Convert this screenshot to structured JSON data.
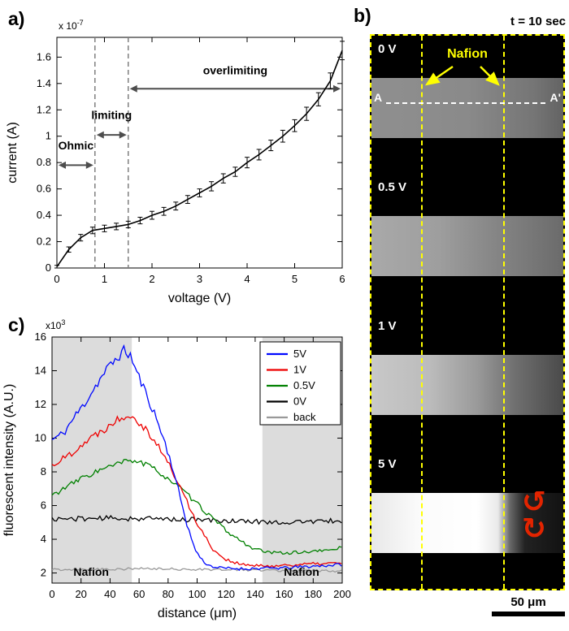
{
  "figure": {
    "panel_a_label": "a)",
    "panel_b_label": "b)",
    "panel_c_label": "c)"
  },
  "panel_b": {
    "time_label": "t = 10 sec",
    "nafion_label": "Nafion",
    "marker_left": "A",
    "marker_right": "A'",
    "scale_bar_label": "50 μm",
    "membrane_line_color": "#ffff00",
    "vortex_color": "#e32400",
    "vortex_glyphs": [
      "↺",
      "↻"
    ],
    "membrane_left_pct": 26,
    "membrane_right_pct": 68.5,
    "sections": [
      {
        "label": "0 V",
        "band_gradient": "linear-gradient(90deg, #8f8f8f 0%, #8a8a8a 50%, #757575 85%, #636363 100%)"
      },
      {
        "label": "0.5 V",
        "band_gradient": "linear-gradient(90deg, #a9a9a9 0%, #9e9e9e 35%, #858585 65%, #6b6b6b 100%)"
      },
      {
        "label": "1 V",
        "band_gradient": "linear-gradient(90deg, #c8c8c8 0%, #bcbcbc 30%, #9a9a9a 55%, #6f6f6f 75%, #4a4a4a 100%)"
      },
      {
        "label": "5 V",
        "band_gradient": "linear-gradient(90deg, #e8e8e8 0%, #fbfbfb 25%, #ffffff 55%, #e9e9e9 66%, #6a6a6a 72%, #222222 80%, #121212 100%)"
      }
    ]
  },
  "chart_data": [
    {
      "id": "iv-curve",
      "type": "line",
      "xlabel": "voltage (V)",
      "ylabel": "current (A)",
      "scale_label": {
        "mantissa": "x 10",
        "exponent": "-7"
      },
      "xlim": [
        0,
        6
      ],
      "ylim": [
        0,
        1.75
      ],
      "xticks": [
        0,
        1,
        2,
        3,
        4,
        5,
        6
      ],
      "yticks": [
        0,
        0.2,
        0.4,
        0.6,
        0.8,
        1,
        1.2,
        1.4,
        1.6
      ],
      "line_color": "#000000",
      "dashed_x": [
        0.8,
        1.5
      ],
      "regions": [
        {
          "label": "Ohmic",
          "x0": 0,
          "x1": 0.8,
          "arrow_y": 0.78,
          "label_y": 0.9
        },
        {
          "label": "limiting",
          "x0": 0.8,
          "x1": 1.5,
          "arrow_y": 1.01,
          "label_y": 1.13
        },
        {
          "label": "overlimiting",
          "x0": 1.5,
          "x1": 6,
          "arrow_y": 1.36,
          "label_y": 1.47
        }
      ],
      "x": [
        0,
        0.25,
        0.5,
        0.75,
        1,
        1.25,
        1.5,
        1.75,
        2,
        2.25,
        2.5,
        2.75,
        3,
        3.25,
        3.5,
        3.75,
        4,
        4.25,
        4.5,
        4.75,
        5,
        5.25,
        5.5,
        5.75,
        6
      ],
      "y": [
        0.01,
        0.14,
        0.23,
        0.285,
        0.3,
        0.315,
        0.33,
        0.36,
        0.4,
        0.43,
        0.47,
        0.52,
        0.57,
        0.62,
        0.68,
        0.73,
        0.8,
        0.86,
        0.93,
        1.0,
        1.08,
        1.17,
        1.28,
        1.42,
        1.65
      ],
      "yerr": [
        0.01,
        0.02,
        0.025,
        0.025,
        0.025,
        0.025,
        0.025,
        0.025,
        0.03,
        0.03,
        0.03,
        0.03,
        0.03,
        0.035,
        0.035,
        0.035,
        0.04,
        0.04,
        0.04,
        0.045,
        0.045,
        0.05,
        0.05,
        0.06,
        0.07
      ]
    },
    {
      "id": "intensity-profiles",
      "type": "line",
      "xlabel": "distance (μm)",
      "ylabel": "fluorescent intensity (A.U.)",
      "scale_label": {
        "mantissa": "x10",
        "exponent": "3"
      },
      "xlim": [
        0,
        200
      ],
      "ylim": [
        1.4,
        16
      ],
      "xticks": [
        0,
        20,
        40,
        60,
        80,
        100,
        120,
        140,
        160,
        180,
        200
      ],
      "yticks": [
        2,
        4,
        6,
        8,
        10,
        12,
        14,
        16
      ],
      "nafion_label": "Nafion",
      "nafion_regions": [
        [
          0,
          55
        ],
        [
          145,
          200
        ]
      ],
      "nafion_fill": "#dcdcdc",
      "legend_position": "top-right",
      "series": [
        {
          "name": "5V",
          "color": "#0008ff",
          "noise": 0.35,
          "seed": 11,
          "keypoints": [
            [
              0,
              9.9
            ],
            [
              8,
              10.3
            ],
            [
              15,
              11.2
            ],
            [
              22,
              12.0
            ],
            [
              30,
              13.1
            ],
            [
              38,
              14.1
            ],
            [
              45,
              14.8
            ],
            [
              50,
              15.2
            ],
            [
              54,
              14.9
            ],
            [
              58,
              14.0
            ],
            [
              63,
              13.0
            ],
            [
              70,
              11.6
            ],
            [
              76,
              10.2
            ],
            [
              82,
              8.6
            ],
            [
              88,
              6.6
            ],
            [
              93,
              4.9
            ],
            [
              98,
              3.5
            ],
            [
              103,
              2.8
            ],
            [
              108,
              2.45
            ],
            [
              115,
              2.3
            ],
            [
              130,
              2.25
            ],
            [
              160,
              2.3
            ],
            [
              200,
              2.5
            ]
          ]
        },
        {
          "name": "1V",
          "color": "#ee0000",
          "noise": 0.35,
          "seed": 22,
          "keypoints": [
            [
              0,
              8.4
            ],
            [
              10,
              8.9
            ],
            [
              20,
              9.6
            ],
            [
              30,
              10.2
            ],
            [
              40,
              10.8
            ],
            [
              48,
              11.3
            ],
            [
              55,
              11.4
            ],
            [
              60,
              11.0
            ],
            [
              68,
              10.2
            ],
            [
              75,
              9.3
            ],
            [
              82,
              8.2
            ],
            [
              90,
              6.8
            ],
            [
              98,
              5.3
            ],
            [
              105,
              4.2
            ],
            [
              112,
              3.3
            ],
            [
              120,
              2.8
            ],
            [
              130,
              2.5
            ],
            [
              145,
              2.4
            ],
            [
              170,
              2.5
            ],
            [
              200,
              2.6
            ]
          ]
        },
        {
          "name": "0.5V",
          "color": "#008000",
          "noise": 0.3,
          "seed": 33,
          "keypoints": [
            [
              0,
              6.6
            ],
            [
              10,
              7.1
            ],
            [
              20,
              7.6
            ],
            [
              30,
              8.0
            ],
            [
              40,
              8.3
            ],
            [
              50,
              8.6
            ],
            [
              57,
              8.7
            ],
            [
              65,
              8.4
            ],
            [
              72,
              8.1
            ],
            [
              80,
              7.6
            ],
            [
              90,
              6.9
            ],
            [
              100,
              6.1
            ],
            [
              110,
              5.3
            ],
            [
              120,
              4.5
            ],
            [
              130,
              3.9
            ],
            [
              140,
              3.4
            ],
            [
              150,
              3.2
            ],
            [
              165,
              3.2
            ],
            [
              185,
              3.3
            ],
            [
              200,
              3.5
            ]
          ]
        },
        {
          "name": "0V",
          "color": "#000000",
          "noise": 0.35,
          "seed": 44,
          "keypoints": [
            [
              0,
              5.2
            ],
            [
              40,
              5.25
            ],
            [
              80,
              5.2
            ],
            [
              120,
              5.1
            ],
            [
              160,
              5.0
            ],
            [
              200,
              5.1
            ]
          ]
        },
        {
          "name": "back",
          "color": "#999999",
          "noise": 0.28,
          "seed": 55,
          "keypoints": [
            [
              0,
              2.2
            ],
            [
              60,
              2.25
            ],
            [
              120,
              2.2
            ],
            [
              200,
              2.1
            ]
          ]
        }
      ]
    }
  ]
}
